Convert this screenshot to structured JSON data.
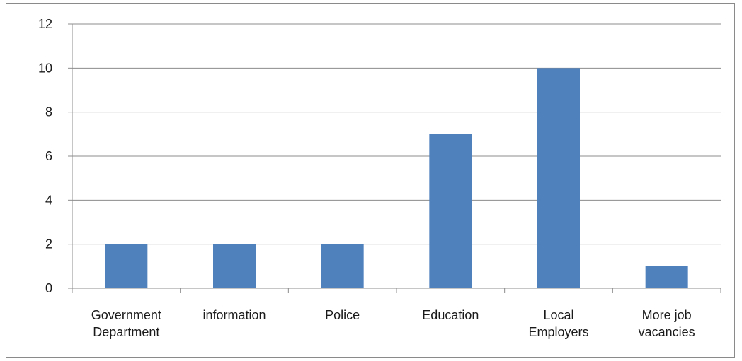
{
  "chart_data": {
    "type": "bar",
    "title": "",
    "xlabel": "",
    "ylabel": "",
    "categories": [
      [
        "Government",
        "Department"
      ],
      [
        "information"
      ],
      [
        "Police"
      ],
      [
        "Education"
      ],
      [
        "Local",
        "Employers"
      ],
      [
        "More job",
        "vacancies"
      ]
    ],
    "values": [
      2,
      2,
      2,
      7,
      10,
      1
    ],
    "ylim": [
      0,
      12
    ],
    "yticks": [
      0,
      2,
      4,
      6,
      8,
      10,
      12
    ],
    "grid": true,
    "legend": "none",
    "bar_color": "#4f81bd",
    "grid_color": "#8c8c8c",
    "axis_color": "#8c8c8c"
  }
}
